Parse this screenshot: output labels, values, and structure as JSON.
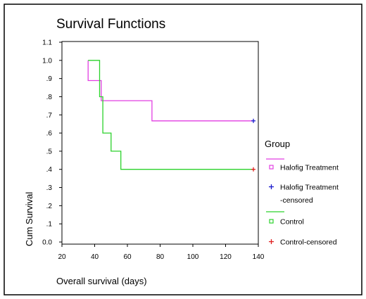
{
  "chart_data": {
    "type": "line",
    "title": "Survival Functions",
    "xlabel": "Overall survival (days)",
    "ylabel": "Cum Survival",
    "xlim": [
      20,
      140
    ],
    "ylim": [
      0.0,
      1.1
    ],
    "xticks": [
      20,
      40,
      60,
      80,
      100,
      120,
      140
    ],
    "xtick_labels": [
      "20",
      "40",
      "60",
      "80",
      "100",
      "120",
      "140"
    ],
    "yticks": [
      0.0,
      0.1,
      0.2,
      0.3,
      0.4,
      0.5,
      0.6,
      0.7,
      0.8,
      0.9,
      1.0,
      1.1
    ],
    "ytick_labels": [
      "0.0",
      ".1",
      ".2",
      ".3",
      ".4",
      ".5",
      ".6",
      ".7",
      ".8",
      ".9",
      "1.0",
      "1.1"
    ],
    "grid": false,
    "legend_position": "right",
    "legend_title": "Group",
    "series": [
      {
        "name": "Halofig Treatment",
        "color": "#e23fe2",
        "step_x": [
          36,
          36,
          44,
          44,
          75,
          75,
          137
        ],
        "step_y": [
          1.0,
          0.889,
          0.889,
          0.778,
          0.778,
          0.667,
          0.667
        ],
        "censored": [
          {
            "x": 137,
            "y": 0.667
          }
        ],
        "censored_name": "Halofig Treatment -censored",
        "censored_color": "#1a1acc"
      },
      {
        "name": "Control",
        "color": "#2bd22b",
        "step_x": [
          36,
          43,
          43,
          45,
          45,
          50,
          50,
          56,
          56,
          137
        ],
        "step_y": [
          1.0,
          1.0,
          0.8,
          0.8,
          0.6,
          0.6,
          0.5,
          0.5,
          0.4,
          0.4
        ],
        "censored": [
          {
            "x": 137,
            "y": 0.4
          }
        ],
        "censored_name": "Control-censored",
        "censored_color": "#e01e1e"
      }
    ],
    "legend": [
      {
        "kind": "line",
        "series": 0
      },
      {
        "kind": "marker",
        "label": "Halofig Treatment",
        "symbol": "square",
        "color": "#e23fe2"
      },
      {
        "kind": "marker",
        "label": "Halofig Treatment",
        "label2": "-censored",
        "symbol": "plus",
        "color": "#1a1acc"
      },
      {
        "kind": "line",
        "series": 1
      },
      {
        "kind": "marker",
        "label": "Control",
        "symbol": "square",
        "color": "#2bd22b"
      },
      {
        "kind": "marker",
        "label": "Control-censored",
        "symbol": "plus",
        "color": "#e01e1e"
      }
    ]
  }
}
